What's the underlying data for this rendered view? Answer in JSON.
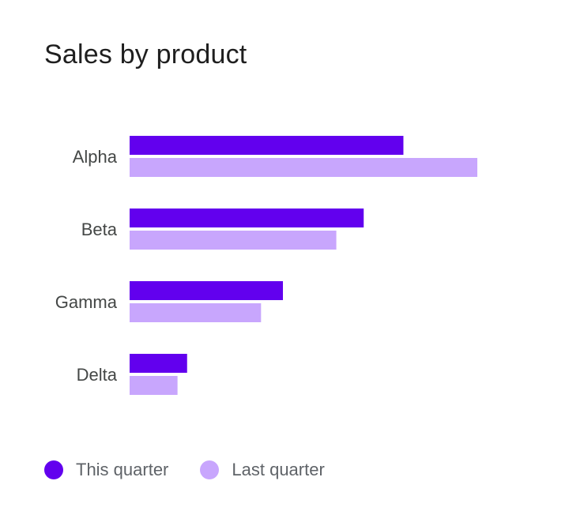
{
  "chart_data": {
    "type": "bar",
    "orientation": "horizontal",
    "title": "Sales by product",
    "categories": [
      "Alpha",
      "Beta",
      "Gamma",
      "Delta"
    ],
    "series": [
      {
        "name": "This quarter",
        "color": "#6200ee",
        "values": [
          100,
          85.5,
          56,
          21
        ]
      },
      {
        "name": "Last quarter",
        "color": "#c8a6fd",
        "values": [
          127,
          75.5,
          48,
          17.5
        ]
      }
    ],
    "xlim": [
      0,
      127
    ],
    "grid": false,
    "legend_position": "bottom-left"
  }
}
